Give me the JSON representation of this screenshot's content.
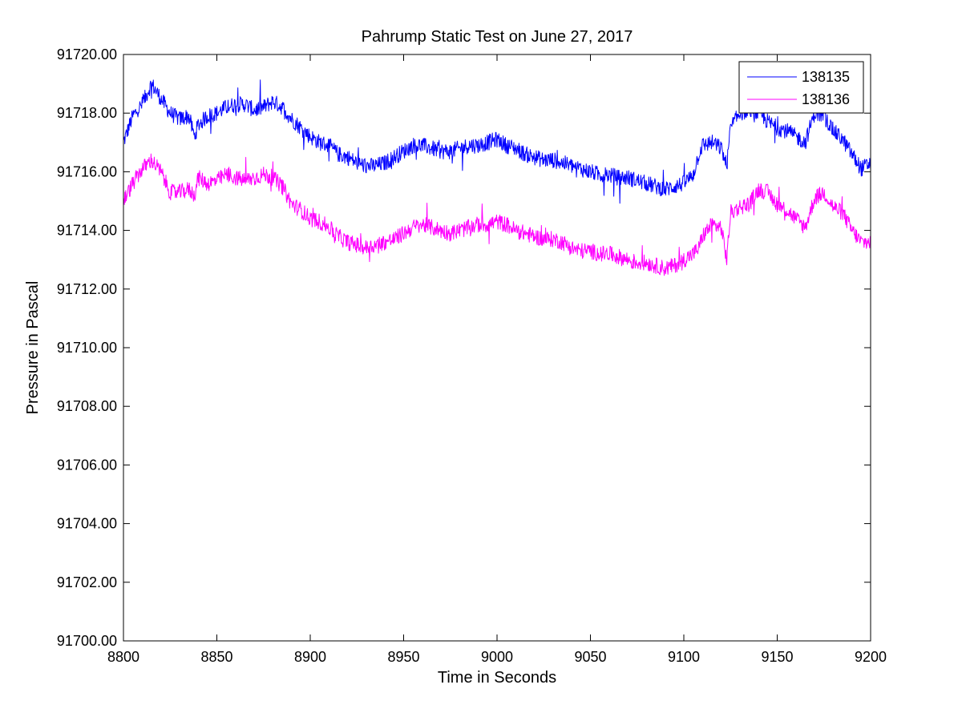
{
  "chart_data": {
    "type": "line",
    "title": "Pahrump Static Test on June 27, 2017",
    "xlabel": "Time in Seconds",
    "ylabel": "Pressure in Pascal",
    "xlim": [
      8800,
      9200
    ],
    "ylim": [
      91700,
      91720
    ],
    "xticks": [
      "8800",
      "8850",
      "8900",
      "8950",
      "9000",
      "9050",
      "9100",
      "9150",
      "9200"
    ],
    "yticks": [
      "91700.00",
      "91702.00",
      "91704.00",
      "91706.00",
      "91708.00",
      "91710.00",
      "91712.00",
      "91714.00",
      "91716.00",
      "91718.00",
      "91720.00"
    ],
    "grid": false,
    "legend": "top-right",
    "series": [
      {
        "name": "138135",
        "color": "#0000ff",
        "x": [
          8800,
          8805,
          8810,
          8815,
          8820,
          8825,
          8830,
          8835,
          8838,
          8840,
          8845,
          8850,
          8855,
          8860,
          8865,
          8870,
          8875,
          8880,
          8885,
          8890,
          8895,
          8900,
          8905,
          8910,
          8915,
          8920,
          8925,
          8930,
          8935,
          8940,
          8945,
          8950,
          8955,
          8960,
          8965,
          8970,
          8975,
          8980,
          8985,
          8990,
          8995,
          9000,
          9005,
          9010,
          9015,
          9020,
          9025,
          9030,
          9035,
          9040,
          9045,
          9050,
          9055,
          9060,
          9065,
          9070,
          9075,
          9080,
          9085,
          9090,
          9095,
          9100,
          9105,
          9108,
          9110,
          9115,
          9120,
          9123,
          9125,
          9130,
          9135,
          9140,
          9145,
          9150,
          9155,
          9160,
          9165,
          9170,
          9175,
          9180,
          9185,
          9190,
          9195,
          9200
        ],
        "y": [
          91717.0,
          91717.9,
          91718.3,
          91719.0,
          91718.5,
          91718.0,
          91717.8,
          91717.9,
          91717.2,
          91717.6,
          91717.9,
          91718.0,
          91718.2,
          91718.3,
          91718.3,
          91718.1,
          91718.2,
          91718.4,
          91718.2,
          91717.8,
          91717.5,
          91717.2,
          91717.0,
          91716.9,
          91716.6,
          91716.5,
          91716.3,
          91716.2,
          91716.2,
          91716.3,
          91716.5,
          91716.7,
          91716.9,
          91716.9,
          91716.8,
          91716.7,
          91716.7,
          91716.8,
          91716.9,
          91716.9,
          91717.0,
          91717.1,
          91716.9,
          91716.8,
          91716.6,
          91716.5,
          91716.4,
          91716.4,
          91716.3,
          91716.2,
          91716.1,
          91716.0,
          91715.9,
          91715.9,
          91715.8,
          91715.8,
          91715.7,
          91715.6,
          91715.5,
          91715.4,
          91715.5,
          91715.6,
          91715.9,
          91716.6,
          91716.9,
          91717.0,
          91716.8,
          91716.2,
          91717.5,
          91718.0,
          91718.1,
          91718.0,
          91717.7,
          91717.5,
          91717.4,
          91717.2,
          91717.0,
          91718.0,
          91717.9,
          91717.4,
          91717.1,
          91716.6,
          91716.1,
          91716.3
        ]
      },
      {
        "name": "138136",
        "color": "#ff00ff",
        "x": [
          8800,
          8805,
          8810,
          8815,
          8820,
          8825,
          8830,
          8835,
          8838,
          8840,
          8845,
          8850,
          8855,
          8860,
          8865,
          8870,
          8875,
          8880,
          8885,
          8890,
          8895,
          8900,
          8905,
          8910,
          8915,
          8920,
          8925,
          8930,
          8935,
          8940,
          8945,
          8950,
          8955,
          8960,
          8965,
          8970,
          8975,
          8980,
          8985,
          8990,
          8995,
          9000,
          9005,
          9010,
          9015,
          9020,
          9025,
          9030,
          9035,
          9040,
          9045,
          9050,
          9055,
          9060,
          9065,
          9070,
          9075,
          9080,
          9085,
          9090,
          9095,
          9100,
          9105,
          9108,
          9110,
          9115,
          9120,
          9123,
          9125,
          9130,
          9135,
          9140,
          9145,
          9150,
          9155,
          9160,
          9165,
          9170,
          9175,
          9180,
          9185,
          9190,
          9195,
          9200
        ],
        "y": [
          91715.0,
          91715.6,
          91716.1,
          91716.4,
          91716.0,
          91715.3,
          91715.3,
          91715.4,
          91715.2,
          91715.8,
          91715.6,
          91715.7,
          91715.9,
          91715.8,
          91715.7,
          91715.8,
          91715.9,
          91715.8,
          91715.5,
          91714.9,
          91714.7,
          91714.4,
          91714.3,
          91714.1,
          91713.8,
          91713.6,
          91713.5,
          91713.4,
          91713.5,
          91713.6,
          91713.7,
          91713.9,
          91714.1,
          91714.2,
          91714.1,
          91714.0,
          91713.9,
          91714.0,
          91714.1,
          91714.2,
          91714.2,
          91714.3,
          91714.2,
          91714.0,
          91713.9,
          91713.8,
          91713.7,
          91713.7,
          91713.6,
          91713.4,
          91713.3,
          91713.3,
          91713.2,
          91713.2,
          91713.1,
          91713.0,
          91712.9,
          91712.9,
          91712.8,
          91712.7,
          91712.8,
          91713.0,
          91713.2,
          91713.4,
          91713.8,
          91714.2,
          91714.1,
          91713.0,
          91714.6,
          91714.8,
          91714.9,
          91715.4,
          91715.3,
          91714.9,
          91714.7,
          91714.4,
          91714.1,
          91715.1,
          91715.3,
          91714.8,
          91714.6,
          91714.0,
          91713.6,
          91713.6
        ]
      }
    ]
  }
}
